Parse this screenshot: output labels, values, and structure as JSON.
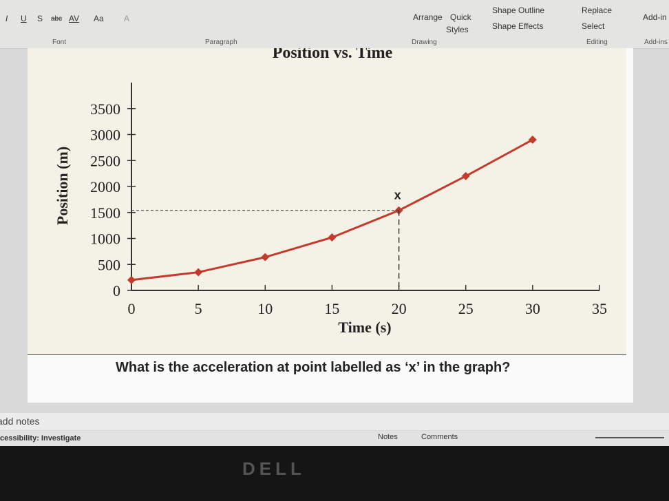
{
  "ribbon": {
    "font_tools": [
      "I",
      "U",
      "S",
      "abc",
      "AV",
      "Aa",
      "A"
    ],
    "buttons": {
      "arrange": "Arrange",
      "quick_styles_1": "Quick",
      "quick_styles_2": "Styles",
      "shape_outline": "Shape Outline",
      "shape_effects": "Shape Effects",
      "replace": "Replace",
      "select": "Select",
      "add_in": "Add-in"
    },
    "groups": {
      "font": "Font",
      "paragraph": "Paragraph",
      "drawing": "Drawing",
      "editing": "Editing",
      "add_ins": "Add-ins"
    }
  },
  "chart_data": {
    "type": "line",
    "title": "Position vs. Time",
    "x_label": "Time (s)",
    "y_label": "Position (m)",
    "x": [
      0,
      5,
      10,
      15,
      20,
      25,
      30
    ],
    "series": [
      {
        "name": "Position",
        "color": "#c43a2c",
        "values": [
          200,
          350,
          640,
          1020,
          1540,
          2200,
          2900
        ]
      }
    ],
    "xlim": [
      0,
      35
    ],
    "xticks": [
      0,
      5,
      10,
      15,
      20,
      25,
      30,
      35
    ],
    "ylim": [
      0,
      4000
    ],
    "yticks": [
      0,
      500,
      1000,
      1500,
      2000,
      2500,
      3000,
      3500
    ],
    "annotation": {
      "text": "x",
      "x": 20
    }
  },
  "question": "What is the acceleration at point labelled as ‘x’ in the graph?",
  "notes": "add notes",
  "status_bar": {
    "accessibility": "cessibility: Investigate",
    "notes": "Notes",
    "comments": "Comments"
  },
  "bezel_logo": "DELL"
}
